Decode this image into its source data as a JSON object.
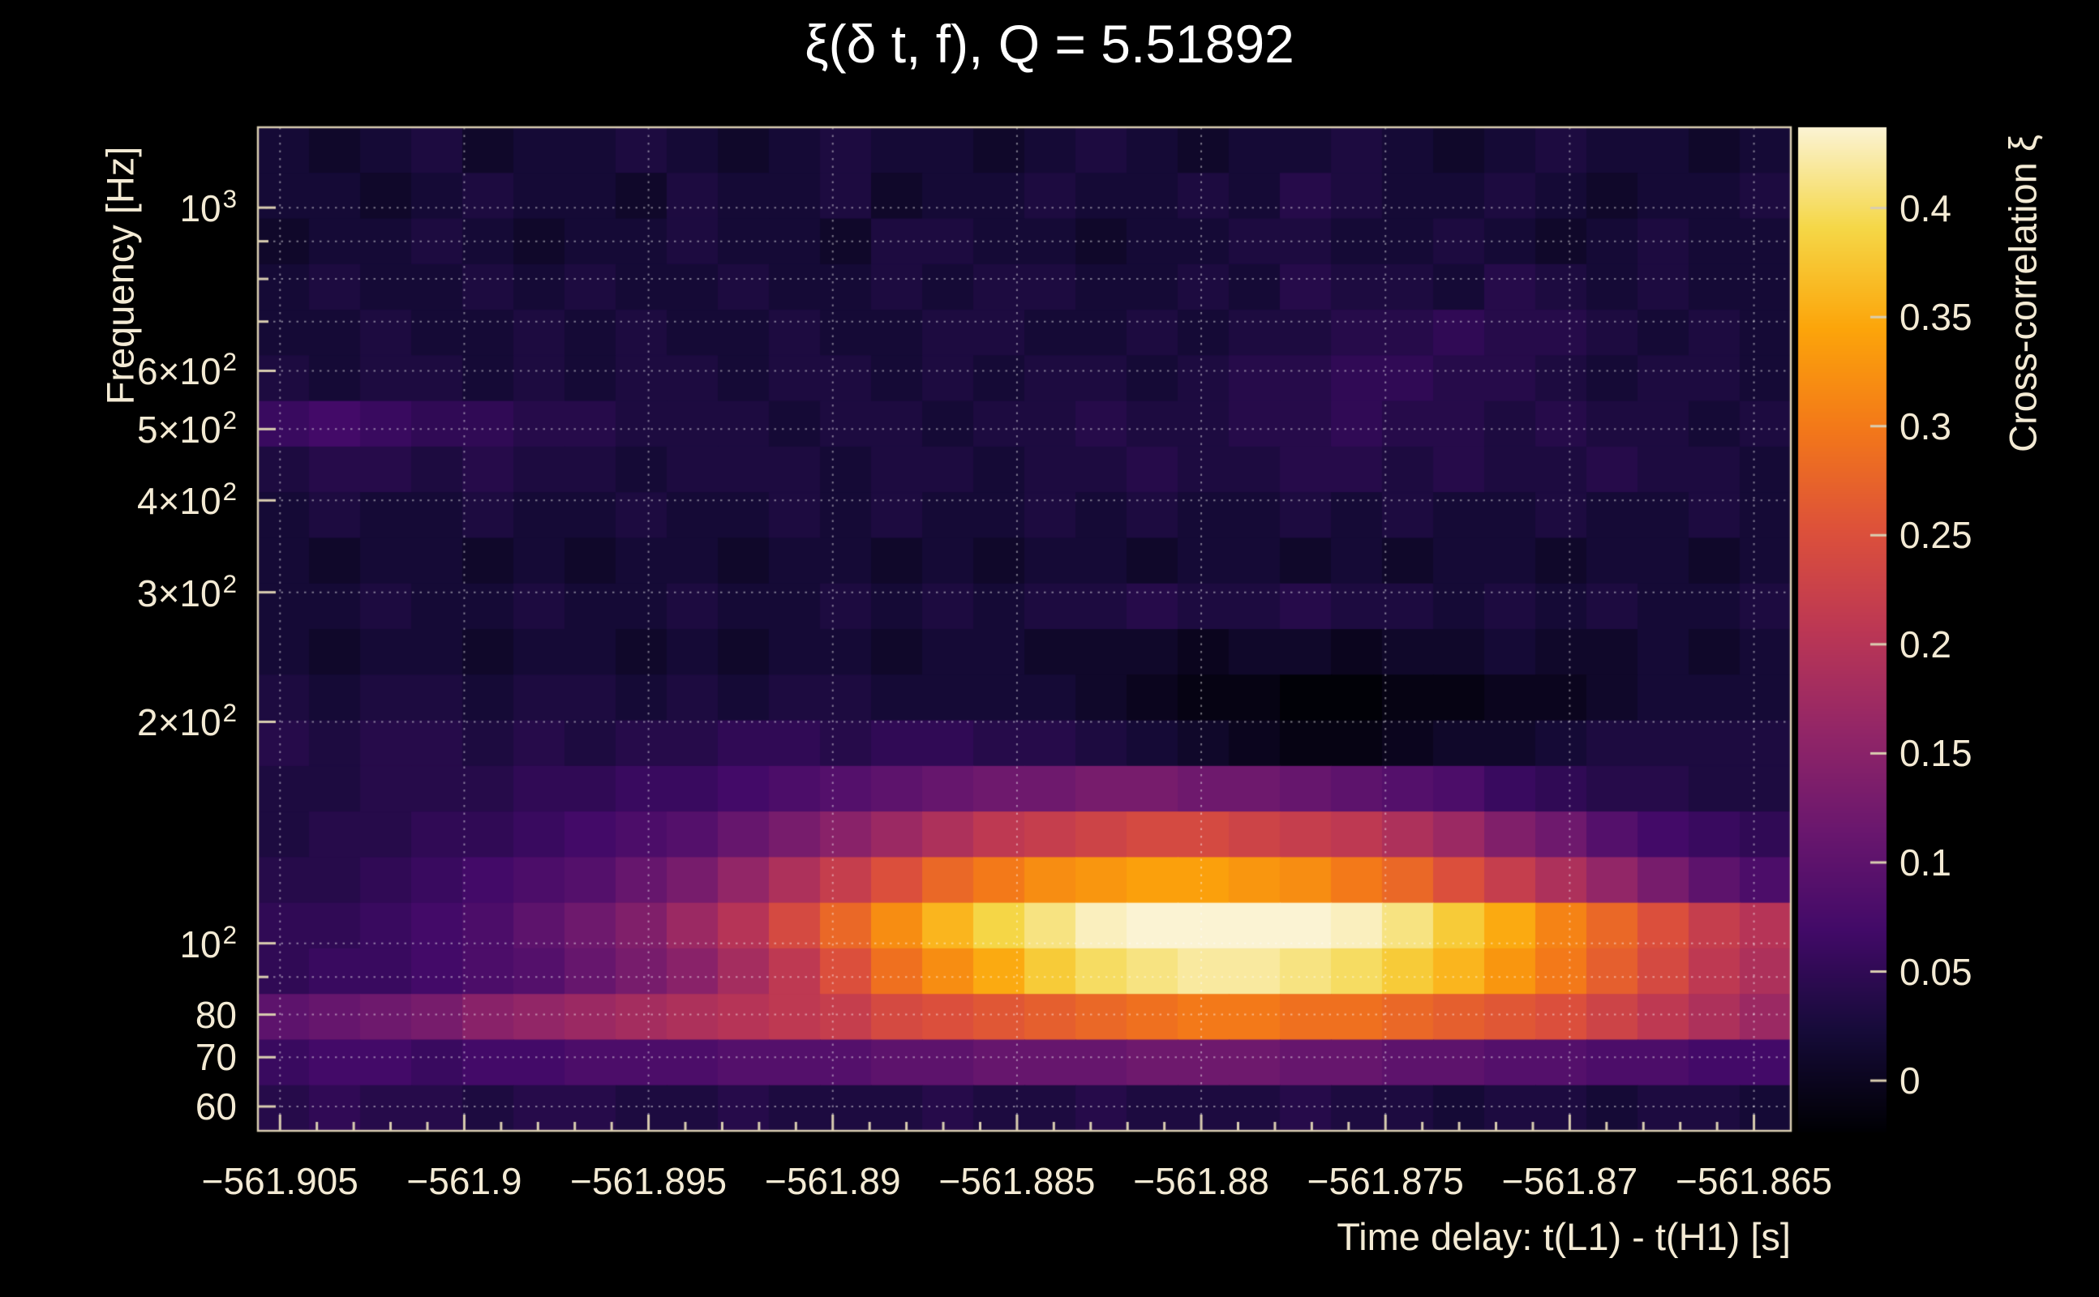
{
  "chart_data": {
    "type": "heatmap",
    "title": "ξ(δ t, f), Q = 5.51892",
    "xlabel": "Time delay: t(L1) - t(H1) [s]",
    "ylabel": "Frequency [Hz]",
    "colorbar_label": "Cross-correlation ξ",
    "x_range": [
      -561.9056,
      -561.864
    ],
    "y_range_hz": [
      55.6,
      1286.0
    ],
    "y_scale": "log",
    "value_range": [
      -0.023,
      0.437
    ],
    "x_ticks": [
      {
        "value": -561.905,
        "label": "−561.905"
      },
      {
        "value": -561.9,
        "label": "−561.9"
      },
      {
        "value": -561.895,
        "label": "−561.895"
      },
      {
        "value": -561.89,
        "label": "−561.89"
      },
      {
        "value": -561.885,
        "label": "−561.885"
      },
      {
        "value": -561.88,
        "label": "−561.88"
      },
      {
        "value": -561.875,
        "label": "−561.875"
      },
      {
        "value": -561.87,
        "label": "−561.87"
      },
      {
        "value": -561.865,
        "label": "−561.865"
      }
    ],
    "x_minor_step": 0.001,
    "y_ticks": [
      {
        "hz": 1000,
        "base": "10",
        "exp": "3"
      },
      {
        "hz": 600,
        "base": "6×10",
        "exp": "2"
      },
      {
        "hz": 500,
        "base": "5×10",
        "exp": "2"
      },
      {
        "hz": 400,
        "base": "4×10",
        "exp": "2"
      },
      {
        "hz": 300,
        "base": "3×10",
        "exp": "2"
      },
      {
        "hz": 200,
        "base": "2×10",
        "exp": "2"
      },
      {
        "hz": 100,
        "base": "10",
        "exp": "2"
      },
      {
        "hz": 80,
        "base": "80",
        "exp": ""
      },
      {
        "hz": 70,
        "base": "70",
        "exp": ""
      },
      {
        "hz": 60,
        "base": "60",
        "exp": ""
      }
    ],
    "y_minor_hz": [
      90,
      700,
      800,
      900
    ],
    "grid_y_hz": [
      60,
      70,
      80,
      90,
      100,
      200,
      300,
      400,
      500,
      600,
      700,
      800,
      900,
      1000
    ],
    "colorbar_ticks": [
      {
        "value": 0.4,
        "label": "0.4"
      },
      {
        "value": 0.35,
        "label": "0.35"
      },
      {
        "value": 0.3,
        "label": "0.3"
      },
      {
        "value": 0.25,
        "label": "0.25"
      },
      {
        "value": 0.2,
        "label": "0.2"
      },
      {
        "value": 0.15,
        "label": "0.15"
      },
      {
        "value": 0.1,
        "label": "0.1"
      },
      {
        "value": 0.05,
        "label": "0.05"
      },
      {
        "value": 0,
        "label": "0"
      }
    ],
    "colors": {
      "background": "#000000",
      "title": "#ffffff",
      "text": "#f3ead4",
      "frame": "#d9cdb0",
      "grid": "rgba(255,255,255,0.45)"
    },
    "colormap": {
      "name": "inferno",
      "stops": [
        {
          "t": 0.0,
          "c": "#000004"
        },
        {
          "t": 0.1,
          "c": "#160b39"
        },
        {
          "t": 0.2,
          "c": "#420a68"
        },
        {
          "t": 0.3,
          "c": "#6a176e"
        },
        {
          "t": 0.4,
          "c": "#932667"
        },
        {
          "t": 0.5,
          "c": "#bc3754"
        },
        {
          "t": 0.6,
          "c": "#dd513a"
        },
        {
          "t": 0.7,
          "c": "#f37819"
        },
        {
          "t": 0.8,
          "c": "#fca50a"
        },
        {
          "t": 0.9,
          "c": "#f5d747"
        },
        {
          "t": 1.0,
          "c": "#fbf3d3"
        }
      ]
    },
    "n_cols": 30,
    "n_rows": 22,
    "values": [
      [
        0.02,
        0.01,
        0.02,
        0.03,
        0.01,
        0.02,
        0.02,
        0.03,
        0.02,
        0.01,
        0.02,
        0.03,
        0.02,
        0.02,
        0.01,
        0.02,
        0.03,
        0.02,
        0.01,
        0.02,
        0.02,
        0.03,
        0.02,
        0.01,
        0.02,
        0.03,
        0.02,
        0.02,
        0.01,
        0.02
      ],
      [
        0.02,
        0.02,
        0.01,
        0.02,
        0.03,
        0.02,
        0.02,
        0.01,
        0.03,
        0.02,
        0.02,
        0.03,
        0.01,
        0.02,
        0.02,
        0.03,
        0.02,
        0.02,
        0.03,
        0.02,
        0.04,
        0.03,
        0.02,
        0.02,
        0.03,
        0.02,
        0.01,
        0.02,
        0.02,
        0.03
      ],
      [
        0.01,
        0.02,
        0.02,
        0.03,
        0.02,
        0.01,
        0.02,
        0.02,
        0.03,
        0.02,
        0.02,
        0.01,
        0.03,
        0.03,
        0.02,
        0.02,
        0.01,
        0.02,
        0.02,
        0.03,
        0.03,
        0.02,
        0.02,
        0.03,
        0.02,
        0.01,
        0.02,
        0.03,
        0.02,
        0.02
      ],
      [
        0.02,
        0.03,
        0.02,
        0.02,
        0.03,
        0.02,
        0.03,
        0.02,
        0.02,
        0.03,
        0.02,
        0.02,
        0.03,
        0.02,
        0.03,
        0.03,
        0.02,
        0.02,
        0.03,
        0.02,
        0.04,
        0.03,
        0.03,
        0.02,
        0.04,
        0.03,
        0.02,
        0.03,
        0.02,
        0.02
      ],
      [
        0.02,
        0.02,
        0.03,
        0.02,
        0.02,
        0.03,
        0.02,
        0.03,
        0.02,
        0.02,
        0.03,
        0.02,
        0.02,
        0.03,
        0.03,
        0.02,
        0.02,
        0.03,
        0.02,
        0.03,
        0.03,
        0.04,
        0.04,
        0.05,
        0.04,
        0.04,
        0.03,
        0.02,
        0.03,
        0.02
      ],
      [
        0.03,
        0.02,
        0.03,
        0.03,
        0.02,
        0.03,
        0.02,
        0.03,
        0.03,
        0.02,
        0.03,
        0.03,
        0.02,
        0.03,
        0.02,
        0.03,
        0.03,
        0.02,
        0.03,
        0.04,
        0.04,
        0.05,
        0.05,
        0.04,
        0.04,
        0.03,
        0.02,
        0.03,
        0.03,
        0.02
      ],
      [
        0.06,
        0.07,
        0.06,
        0.05,
        0.05,
        0.04,
        0.04,
        0.03,
        0.03,
        0.03,
        0.02,
        0.03,
        0.03,
        0.02,
        0.03,
        0.03,
        0.04,
        0.03,
        0.03,
        0.04,
        0.04,
        0.05,
        0.04,
        0.04,
        0.03,
        0.04,
        0.03,
        0.03,
        0.02,
        0.03
      ],
      [
        0.03,
        0.04,
        0.04,
        0.03,
        0.04,
        0.03,
        0.03,
        0.02,
        0.03,
        0.03,
        0.03,
        0.02,
        0.03,
        0.03,
        0.02,
        0.03,
        0.03,
        0.04,
        0.03,
        0.03,
        0.04,
        0.04,
        0.03,
        0.04,
        0.03,
        0.03,
        0.04,
        0.03,
        0.03,
        0.02
      ],
      [
        0.02,
        0.03,
        0.02,
        0.02,
        0.03,
        0.02,
        0.02,
        0.03,
        0.02,
        0.02,
        0.03,
        0.02,
        0.03,
        0.02,
        0.02,
        0.03,
        0.02,
        0.03,
        0.02,
        0.02,
        0.03,
        0.02,
        0.03,
        0.02,
        0.02,
        0.03,
        0.02,
        0.02,
        0.03,
        0.02
      ],
      [
        0.02,
        0.01,
        0.02,
        0.02,
        0.01,
        0.02,
        0.01,
        0.02,
        0.02,
        0.01,
        0.02,
        0.02,
        0.01,
        0.02,
        0.01,
        0.02,
        0.02,
        0.01,
        0.02,
        0.02,
        0.01,
        0.02,
        0.01,
        0.02,
        0.02,
        0.01,
        0.02,
        0.02,
        0.01,
        0.02
      ],
      [
        0.02,
        0.02,
        0.03,
        0.02,
        0.02,
        0.03,
        0.02,
        0.02,
        0.03,
        0.02,
        0.02,
        0.03,
        0.02,
        0.03,
        0.02,
        0.03,
        0.03,
        0.04,
        0.03,
        0.03,
        0.04,
        0.03,
        0.03,
        0.02,
        0.03,
        0.02,
        0.03,
        0.02,
        0.02,
        0.03
      ],
      [
        0.02,
        0.01,
        0.02,
        0.02,
        0.01,
        0.02,
        0.02,
        0.01,
        0.02,
        0.01,
        0.02,
        0.02,
        0.01,
        0.02,
        0.02,
        0.01,
        0.01,
        0.01,
        0.0,
        0.01,
        0.01,
        0.0,
        0.01,
        0.01,
        0.02,
        0.01,
        0.01,
        0.02,
        0.01,
        0.02
      ],
      [
        0.03,
        0.02,
        0.03,
        0.03,
        0.02,
        0.03,
        0.03,
        0.02,
        0.03,
        0.02,
        0.03,
        0.03,
        0.02,
        0.02,
        0.02,
        0.02,
        0.01,
        0.0,
        -0.01,
        -0.01,
        -0.02,
        -0.02,
        -0.01,
        -0.01,
        0.0,
        0.0,
        0.01,
        0.02,
        0.02,
        0.02
      ],
      [
        0.04,
        0.03,
        0.04,
        0.04,
        0.03,
        0.04,
        0.03,
        0.04,
        0.04,
        0.05,
        0.05,
        0.04,
        0.05,
        0.05,
        0.04,
        0.04,
        0.03,
        0.02,
        0.01,
        0.0,
        -0.01,
        -0.01,
        0.0,
        0.01,
        0.01,
        0.02,
        0.03,
        0.03,
        0.03,
        0.03
      ],
      [
        0.03,
        0.03,
        0.04,
        0.04,
        0.04,
        0.05,
        0.05,
        0.06,
        0.06,
        0.07,
        0.08,
        0.09,
        0.1,
        0.11,
        0.12,
        0.12,
        0.13,
        0.13,
        0.12,
        0.12,
        0.11,
        0.1,
        0.09,
        0.08,
        0.06,
        0.05,
        0.04,
        0.04,
        0.03,
        0.03
      ],
      [
        0.03,
        0.04,
        0.04,
        0.05,
        0.05,
        0.06,
        0.07,
        0.08,
        0.09,
        0.11,
        0.13,
        0.15,
        0.17,
        0.19,
        0.21,
        0.22,
        0.23,
        0.24,
        0.24,
        0.23,
        0.22,
        0.21,
        0.19,
        0.17,
        0.14,
        0.12,
        0.09,
        0.07,
        0.06,
        0.05
      ],
      [
        0.04,
        0.04,
        0.05,
        0.06,
        0.07,
        0.08,
        0.09,
        0.11,
        0.13,
        0.16,
        0.19,
        0.22,
        0.25,
        0.28,
        0.3,
        0.32,
        0.33,
        0.34,
        0.34,
        0.33,
        0.32,
        0.3,
        0.28,
        0.25,
        0.22,
        0.19,
        0.16,
        0.13,
        0.1,
        0.08
      ],
      [
        0.05,
        0.05,
        0.06,
        0.07,
        0.08,
        0.1,
        0.12,
        0.14,
        0.17,
        0.2,
        0.24,
        0.28,
        0.32,
        0.36,
        0.39,
        0.41,
        0.43,
        0.44,
        0.45,
        0.45,
        0.44,
        0.43,
        0.41,
        0.38,
        0.35,
        0.31,
        0.28,
        0.25,
        0.22,
        0.2
      ],
      [
        0.05,
        0.06,
        0.06,
        0.07,
        0.08,
        0.09,
        0.11,
        0.13,
        0.15,
        0.18,
        0.21,
        0.25,
        0.29,
        0.32,
        0.35,
        0.38,
        0.4,
        0.41,
        0.42,
        0.42,
        0.41,
        0.4,
        0.38,
        0.36,
        0.33,
        0.3,
        0.27,
        0.24,
        0.21,
        0.19
      ],
      [
        0.1,
        0.11,
        0.12,
        0.13,
        0.15,
        0.16,
        0.17,
        0.18,
        0.19,
        0.2,
        0.21,
        0.22,
        0.24,
        0.25,
        0.26,
        0.27,
        0.28,
        0.29,
        0.3,
        0.3,
        0.29,
        0.29,
        0.28,
        0.27,
        0.26,
        0.25,
        0.23,
        0.21,
        0.19,
        0.17
      ],
      [
        0.06,
        0.07,
        0.07,
        0.06,
        0.07,
        0.07,
        0.08,
        0.08,
        0.08,
        0.09,
        0.09,
        0.09,
        0.1,
        0.1,
        0.11,
        0.11,
        0.11,
        0.12,
        0.12,
        0.12,
        0.11,
        0.11,
        0.1,
        0.1,
        0.09,
        0.09,
        0.08,
        0.08,
        0.07,
        0.07
      ],
      [
        0.04,
        0.05,
        0.04,
        0.04,
        0.03,
        0.04,
        0.04,
        0.03,
        0.03,
        0.04,
        0.03,
        0.03,
        0.03,
        0.04,
        0.03,
        0.03,
        0.04,
        0.03,
        0.03,
        0.03,
        0.04,
        0.03,
        0.03,
        0.02,
        0.03,
        0.03,
        0.02,
        0.03,
        0.03,
        0.02
      ]
    ]
  }
}
